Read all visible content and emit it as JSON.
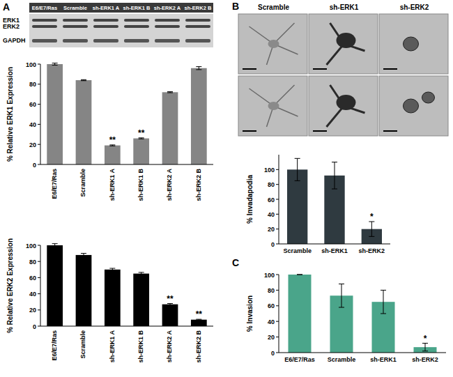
{
  "panels": [
    "A",
    "B",
    "C"
  ],
  "blot": {
    "lanes": [
      "E6/E7/Ras",
      "Scramble",
      "sh-ERK1 A",
      "sh-ERK1 B",
      "sh-ERK2 A",
      "sh-ERK2 B"
    ],
    "bands": [
      "ERK1",
      "ERK2",
      "GAPDH"
    ]
  },
  "micrographs": {
    "columns": [
      "Scramble",
      "sh-ERK1",
      "sh-ERK2"
    ]
  },
  "chart_data": [
    {
      "type": "bar",
      "y_label": "% Relative ERK1 Expression",
      "categories": [
        "E6/E7/Ras",
        "Scramble",
        "sh-ERK1 A",
        "sh-ERK1 B",
        "sh-ERK2 A",
        "sh-ERK2 B"
      ],
      "values": [
        100,
        84,
        19,
        26,
        72,
        96
      ],
      "errors": [
        1,
        0.5,
        0.5,
        0.5,
        0.5,
        1.5
      ],
      "annotations": [
        null,
        null,
        "**",
        "**",
        null,
        null
      ],
      "color": "#858585",
      "ylim": [
        0,
        100
      ],
      "yticks": [
        0,
        20,
        40,
        60,
        80,
        100
      ]
    },
    {
      "type": "bar",
      "y_label": "% Relative ERK2 Expression",
      "categories": [
        "E6/E7/Ras",
        "Scramble",
        "sh-ERK1 A",
        "sh-ERK1 B",
        "sh-ERK2 A",
        "sh-ERK2 B"
      ],
      "values": [
        100,
        88,
        70,
        65,
        27,
        8
      ],
      "errors": [
        2,
        2,
        1.5,
        1.5,
        1,
        0.5
      ],
      "annotations": [
        null,
        null,
        null,
        null,
        "**",
        "**"
      ],
      "color": "#000000",
      "ylim": [
        0,
        100
      ],
      "yticks": [
        0,
        20,
        40,
        60,
        80,
        100
      ]
    },
    {
      "type": "bar",
      "y_label": "% Invadapodia",
      "categories": [
        "Scramble",
        "sh-ERK1",
        "sh-ERK2"
      ],
      "values": [
        100,
        92,
        20
      ],
      "errors": [
        15,
        18,
        10
      ],
      "annotations": [
        null,
        null,
        "*"
      ],
      "color": "#2f3a40",
      "ylim": [
        0,
        120
      ],
      "yticks": [
        0,
        20,
        40,
        60,
        80,
        100
      ]
    },
    {
      "type": "bar",
      "y_label": "% Invasion",
      "categories": [
        "E6/E7/Ras",
        "Scramble",
        "sh-ERK1",
        "sh-ERK2"
      ],
      "values": [
        100,
        73,
        65,
        7
      ],
      "errors": [
        0,
        15,
        15,
        5
      ],
      "annotations": [
        null,
        null,
        null,
        "*"
      ],
      "color": "#4aa58a",
      "ylim": [
        0,
        100
      ],
      "yticks": [
        0,
        20,
        40,
        60,
        80,
        100
      ]
    }
  ]
}
